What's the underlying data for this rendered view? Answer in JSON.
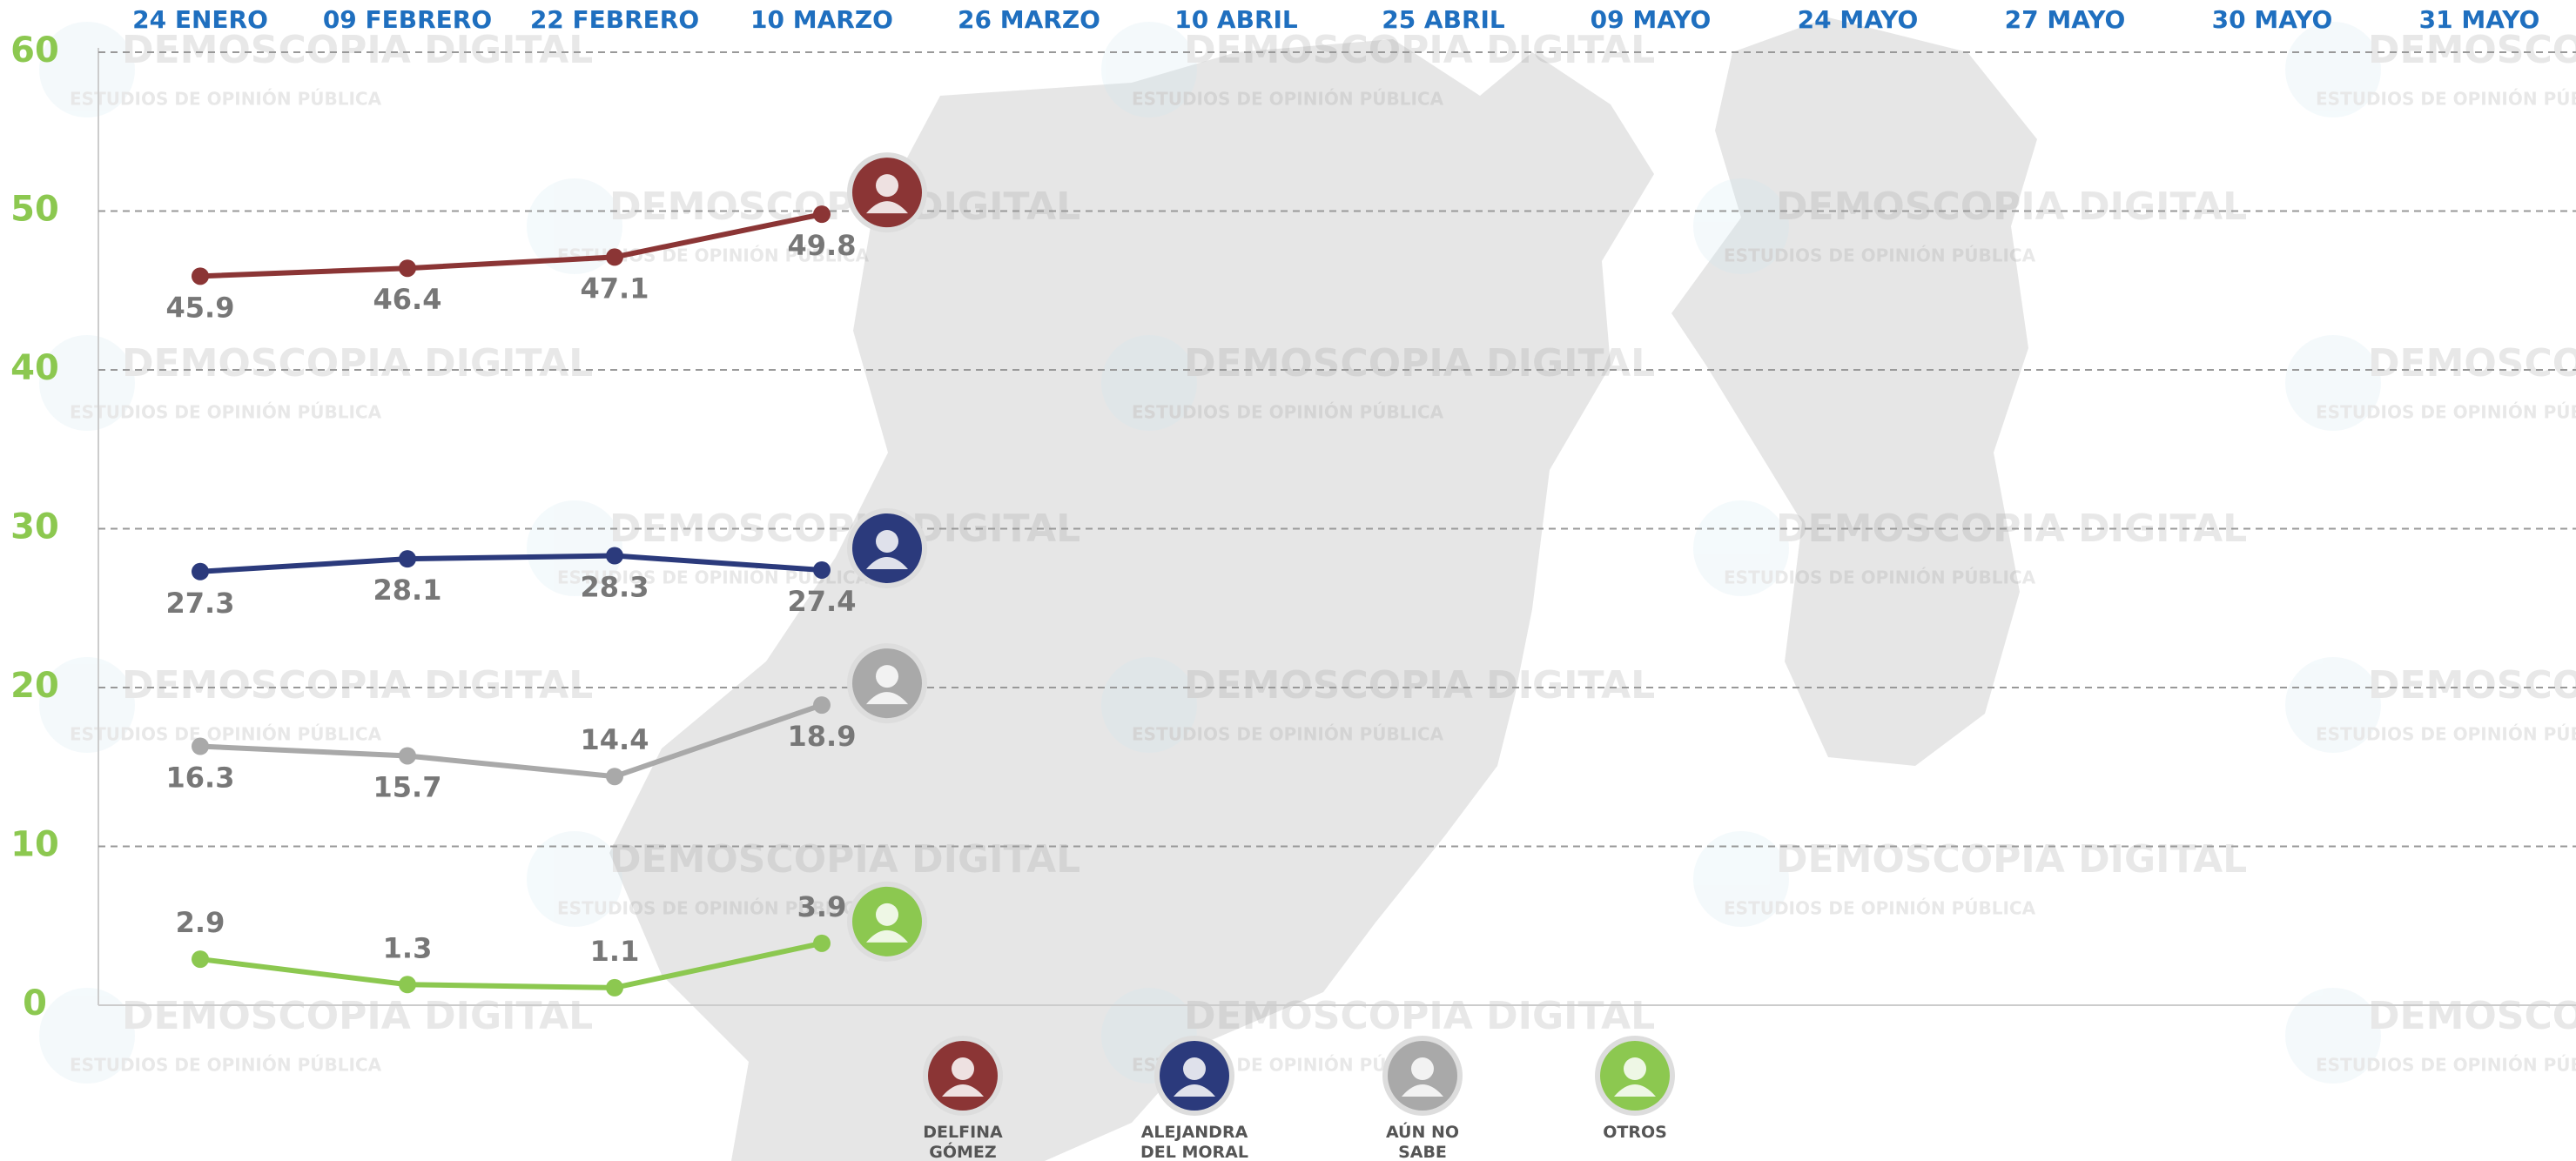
{
  "chart_data": {
    "type": "line",
    "watermark": "DEMOSCOPIA DIGITAL",
    "watermark_subtitle": "ESTUDIOS DE OPINIÓN PÚBLICA",
    "categories": [
      "24 ENERO",
      "09 FEBRERO",
      "22 FEBRERO",
      "10 MARZO",
      "26 MARZO",
      "10 ABRIL",
      "25 ABRIL",
      "09 MAYO",
      "24 MAYO",
      "27 MAYO",
      "30 MAYO",
      "31 MAYO"
    ],
    "series": [
      {
        "name": "DELFINA GÓMEZ",
        "color": "#8b3535",
        "values": [
          45.9,
          46.4,
          47.1,
          49.8,
          null,
          null,
          null,
          null,
          null,
          null,
          null,
          null
        ]
      },
      {
        "name": "ALEJANDRA DEL MORAL",
        "color": "#2b3a7c",
        "values": [
          27.3,
          28.1,
          28.3,
          27.4,
          null,
          null,
          null,
          null,
          null,
          null,
          null,
          null
        ]
      },
      {
        "name": "AÚN NO SABE",
        "color": "#a9a9a9",
        "values": [
          16.3,
          15.7,
          14.4,
          18.9,
          null,
          null,
          null,
          null,
          null,
          null,
          null,
          null
        ]
      },
      {
        "name": "OTROS",
        "color": "#8cc850",
        "values": [
          2.9,
          1.3,
          1.1,
          3.9,
          null,
          null,
          null,
          null,
          null,
          null,
          null,
          null
        ]
      }
    ],
    "ylim": [
      0,
      60
    ],
    "yticks": [
      0,
      10,
      20,
      30,
      40,
      50,
      60
    ],
    "grid": true,
    "tick_color": "#8cc850",
    "category_color": "#1f6fbf"
  }
}
